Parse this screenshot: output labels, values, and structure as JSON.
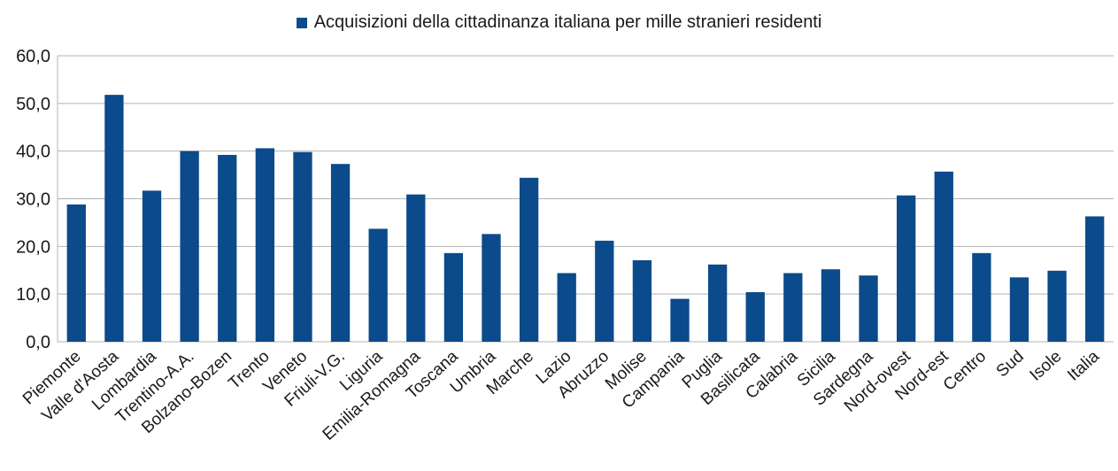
{
  "chart_data": {
    "type": "bar",
    "title": "",
    "xlabel": "",
    "ylabel": "",
    "ylim": [
      0,
      60
    ],
    "yticks": [
      "0,0",
      "10,0",
      "20,0",
      "30,0",
      "40,0",
      "50,0",
      "60,0"
    ],
    "grid": true,
    "legend": "top-center",
    "bar_color": "#0b4a8b",
    "categories": [
      "Piemonte",
      "Valle d'Aosta",
      "Lombardia",
      "Trentino-A.A.",
      "Bolzano-Bozen",
      "Trento",
      "Veneto",
      "Friuli-V.G.",
      "Liguria",
      "Emilia-Romagna",
      "Toscana",
      "Umbria",
      "Marche",
      "Lazio",
      "Abruzzo",
      "Molise",
      "Campania",
      "Puglia",
      "Basilicata",
      "Calabria",
      "Sicilia",
      "Sardegna",
      "Nord-ovest",
      "Nord-est",
      "Centro",
      "Sud",
      "Isole",
      "Italia"
    ],
    "series": [
      {
        "name": "Acquisizioni della cittadinanza italiana per mille stranieri residenti",
        "values": [
          28.8,
          51.8,
          31.7,
          40.0,
          39.2,
          40.6,
          39.8,
          37.3,
          23.7,
          30.9,
          18.6,
          22.6,
          34.4,
          14.4,
          21.2,
          17.1,
          9.0,
          16.2,
          10.4,
          14.4,
          15.2,
          13.9,
          30.7,
          35.7,
          18.6,
          13.5,
          14.9,
          26.3
        ]
      }
    ]
  }
}
